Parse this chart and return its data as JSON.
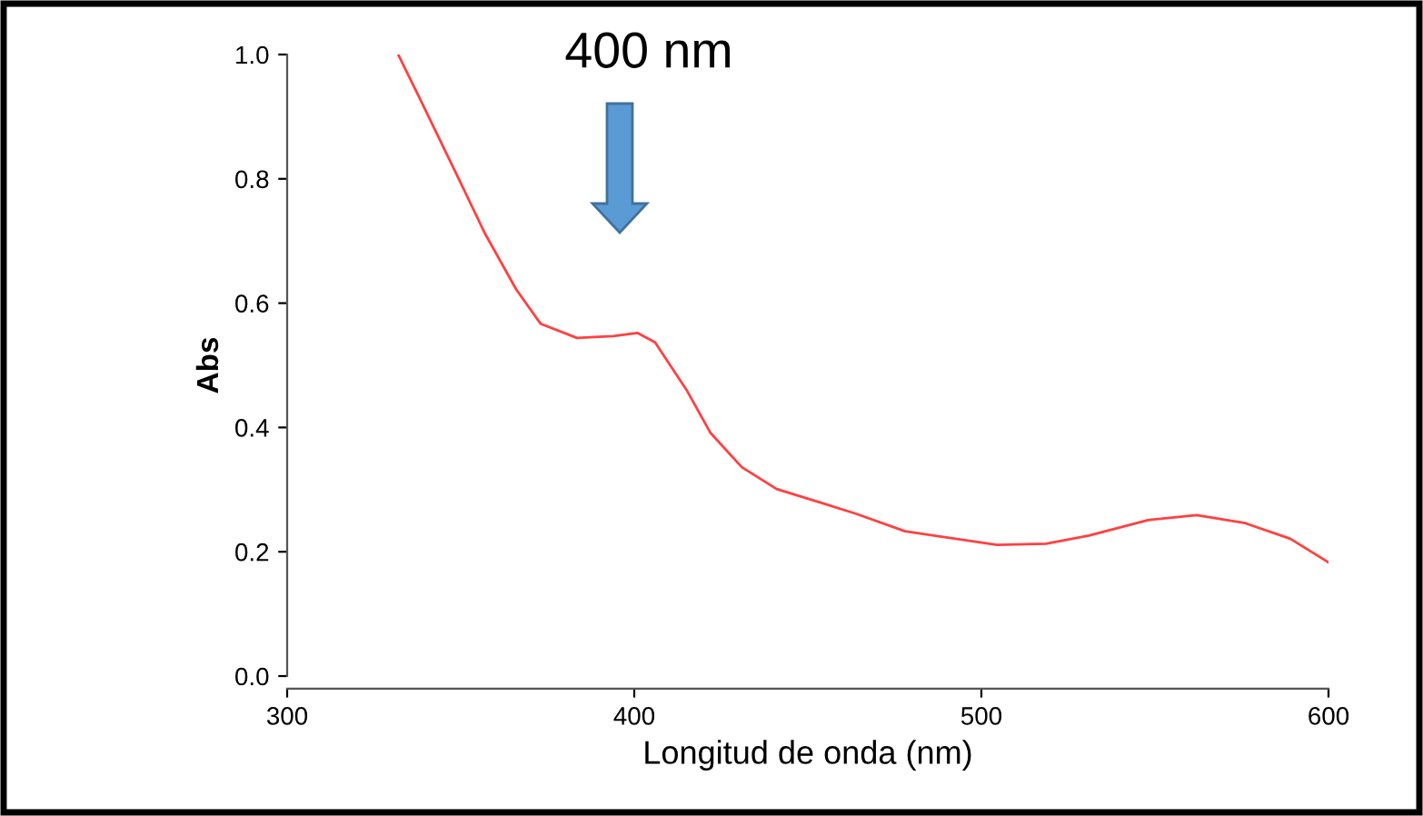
{
  "chart_data": {
    "type": "line",
    "xlabel": "Longitud de onda (nm)",
    "ylabel": "Abs",
    "x": [
      332,
      338,
      348.4,
      357,
      366,
      373,
      383.5,
      394,
      401,
      406,
      415,
      422,
      431,
      441,
      453.7,
      464,
      478,
      504.5,
      518.6,
      531,
      548,
      562,
      576,
      589,
      600
    ],
    "series": [
      {
        "color": "#ff4040",
        "values": [
          1.0,
          0.932,
          0.812,
          0.712,
          0.622,
          0.567,
          0.544,
          0.547,
          0.552,
          0.537,
          0.461,
          0.391,
          0.336,
          0.301,
          0.279,
          0.261,
          0.233,
          0.211,
          0.213,
          0.226,
          0.251,
          0.259,
          0.246,
          0.221,
          0.183
        ]
      }
    ],
    "xlim": [
      300,
      600
    ],
    "xticks": [
      300,
      400,
      500,
      600
    ],
    "ylim": [
      0,
      1.0
    ],
    "yticks": [
      {
        "value": 0,
        "label": "0.0"
      },
      0.2,
      0.4,
      0.6,
      0.8,
      {
        "value": 1,
        "label": "1.0"
      }
    ],
    "annotations": [
      "400 nm"
    ],
    "grid": false,
    "legend": false
  }
}
